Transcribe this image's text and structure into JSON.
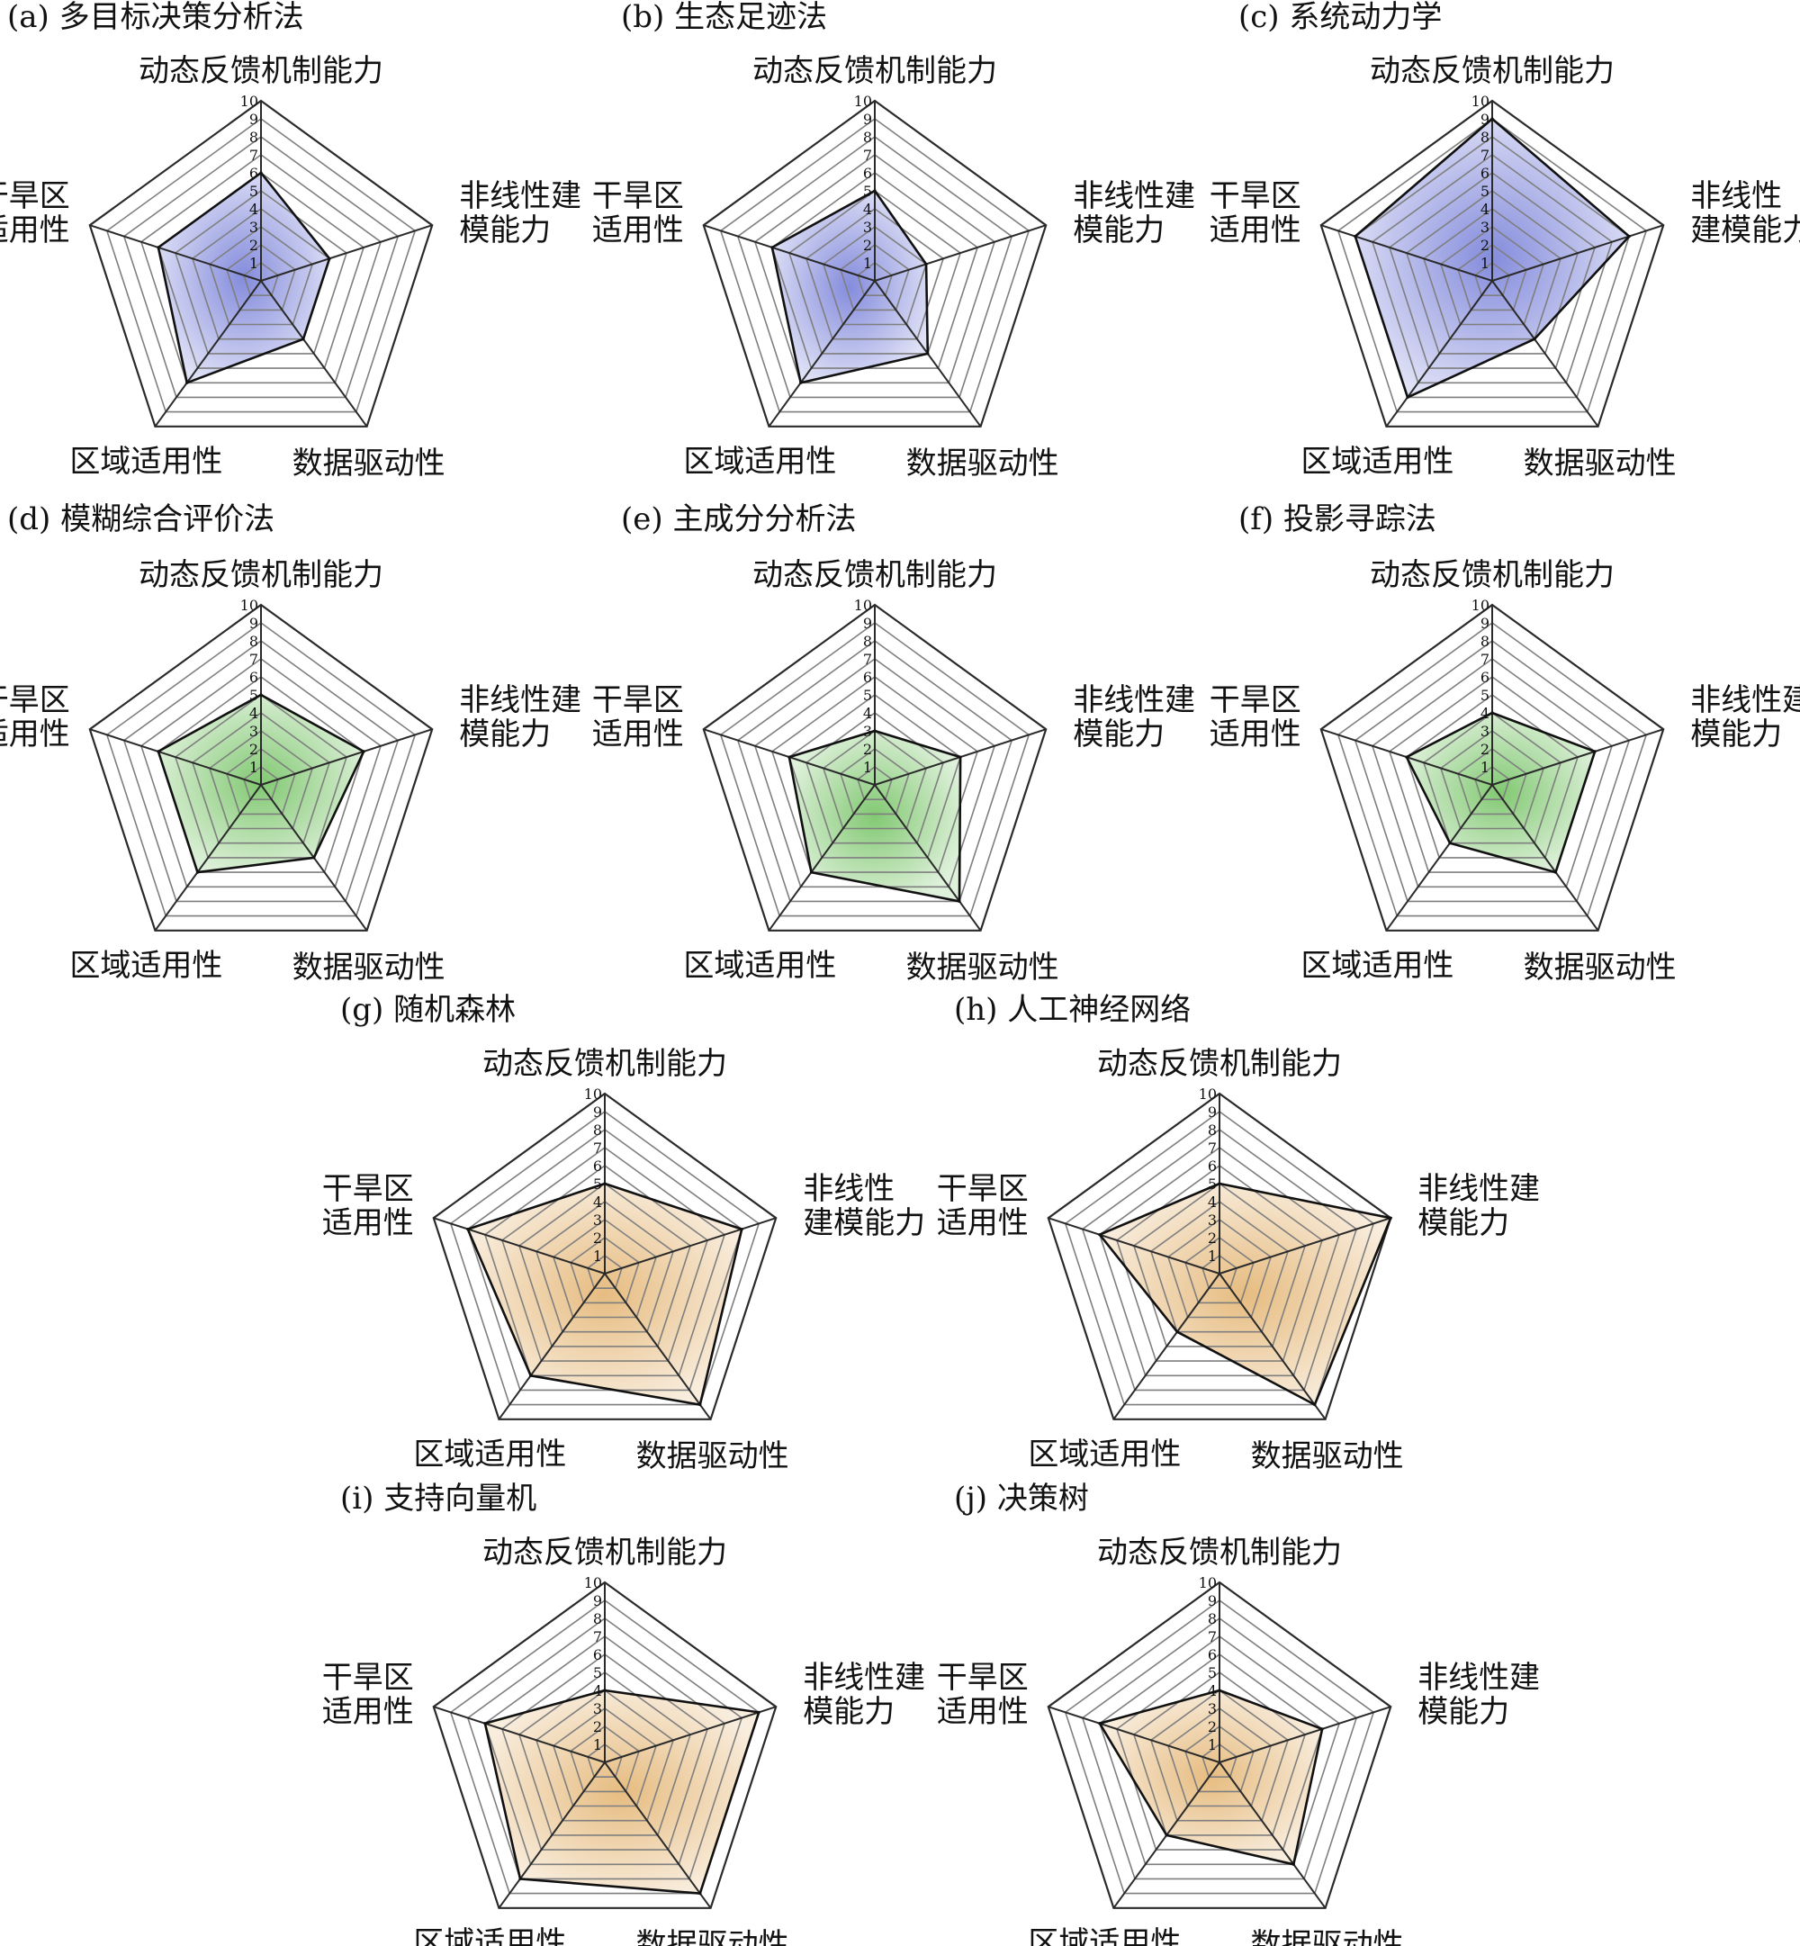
{
  "axes": [
    "动态反馈机制能力",
    "非线性建模能力",
    "数据驱动性",
    "区域适用性",
    "干旱区适用性"
  ],
  "ticks": [
    "1",
    "2",
    "3",
    "4",
    "5",
    "6",
    "7",
    "8",
    "9",
    "10"
  ],
  "rmax": 10,
  "palette": {
    "blue": "#6f78d6",
    "green": "#6cbf5a",
    "orange": "#e2b06a"
  },
  "chart_data": [
    {
      "id": "a",
      "title": "(a) 多目标决策分析法",
      "type": "radar",
      "color": "blue",
      "axis_labels": [
        "动态反馈机制能力",
        "非线性建模能力",
        "数据驱动性",
        "区域适用性",
        "干旱区适用性"
      ],
      "axis_breaks": [
        "",
        "非线性建|模能力",
        "",
        "",
        "干旱区|适用性"
      ],
      "values": [
        6,
        4,
        4,
        7,
        6
      ]
    },
    {
      "id": "b",
      "title": "(b) 生态足迹法",
      "type": "radar",
      "color": "blue",
      "axis_labels": [
        "动态反馈机制能力",
        "非线性建模能力",
        "数据驱动性",
        "区域适用性",
        "干旱区适用性"
      ],
      "axis_breaks": [
        "",
        "非线性建|模能力",
        "",
        "",
        "干旱区|适用性"
      ],
      "values": [
        5,
        3,
        5,
        7,
        6
      ]
    },
    {
      "id": "c",
      "title": "(c) 系统动力学",
      "type": "radar",
      "color": "blue",
      "axis_labels": [
        "动态反馈机制能力",
        "非线性建模能力",
        "数据驱动性",
        "区域适用性",
        "干旱区适用性"
      ],
      "axis_breaks": [
        "",
        "非线性|建模能力",
        "",
        "",
        "干旱区|适用性"
      ],
      "values": [
        9,
        8,
        4,
        8,
        8
      ]
    },
    {
      "id": "d",
      "title": "(d) 模糊综合评价法",
      "type": "radar",
      "color": "green",
      "axis_labels": [
        "动态反馈机制能力",
        "非线性建模能力",
        "数据驱动性",
        "区域适用性",
        "干旱区适用性"
      ],
      "axis_breaks": [
        "",
        "非线性建|模能力",
        "",
        "",
        "干旱区|适用性"
      ],
      "values": [
        5,
        6,
        5,
        6,
        6
      ]
    },
    {
      "id": "e",
      "title": "(e) 主成分分析法",
      "type": "radar",
      "color": "green",
      "axis_labels": [
        "动态反馈机制能力",
        "非线性建模能力",
        "数据驱动性",
        "区域适用性",
        "干旱区适用性"
      ],
      "axis_breaks": [
        "",
        "非线性建|模能力",
        "",
        "",
        "干旱区|适用性"
      ],
      "values": [
        3,
        5,
        8,
        6,
        5
      ]
    },
    {
      "id": "f",
      "title": "(f) 投影寻踪法",
      "type": "radar",
      "color": "green",
      "axis_labels": [
        "动态反馈机制能力",
        "非线性建模能力",
        "数据驱动性",
        "区域适用性",
        "干旱区适用性"
      ],
      "axis_breaks": [
        "",
        "非线性建|模能力",
        "",
        "",
        "干旱区|适用性"
      ],
      "values": [
        4,
        6,
        6,
        4,
        5
      ]
    },
    {
      "id": "g",
      "title": "(g) 随机森林",
      "type": "radar",
      "color": "orange",
      "axis_labels": [
        "动态反馈机制能力",
        "非线性建模能力",
        "数据驱动性",
        "区域适用性",
        "干旱区适用性"
      ],
      "axis_breaks": [
        "",
        "非线性|建模能力",
        "",
        "",
        "干旱区|适用性"
      ],
      "values": [
        5,
        8,
        9,
        7,
        8
      ]
    },
    {
      "id": "h",
      "title": "(h) 人工神经网络",
      "type": "radar",
      "color": "orange",
      "axis_labels": [
        "动态反馈机制能力",
        "非线性建模能力",
        "数据驱动性",
        "区域适用性",
        "干旱区适用性"
      ],
      "axis_breaks": [
        "",
        "非线性建|模能力",
        "",
        "",
        "干旱区|适用性"
      ],
      "values": [
        5,
        10,
        9,
        4,
        7
      ]
    },
    {
      "id": "i",
      "title": "(i) 支持向量机",
      "type": "radar",
      "color": "orange",
      "axis_labels": [
        "动态反馈机制能力",
        "非线性建模能力",
        "数据驱动性",
        "区域适用性",
        "干旱区适用性"
      ],
      "axis_breaks": [
        "",
        "非线性建|模能力",
        "",
        "",
        "干旱区|适用性"
      ],
      "values": [
        4,
        9,
        9,
        8,
        7
      ]
    },
    {
      "id": "j",
      "title": "(j) 决策树",
      "type": "radar",
      "color": "orange",
      "axis_labels": [
        "动态反馈机制能力",
        "非线性建模能力",
        "数据驱动性",
        "区域适用性",
        "干旱区适用性"
      ],
      "axis_breaks": [
        "",
        "非线性建|模能力",
        "",
        "",
        "干旱区|适用性"
      ],
      "values": [
        4,
        6,
        7,
        5,
        7
      ]
    }
  ]
}
